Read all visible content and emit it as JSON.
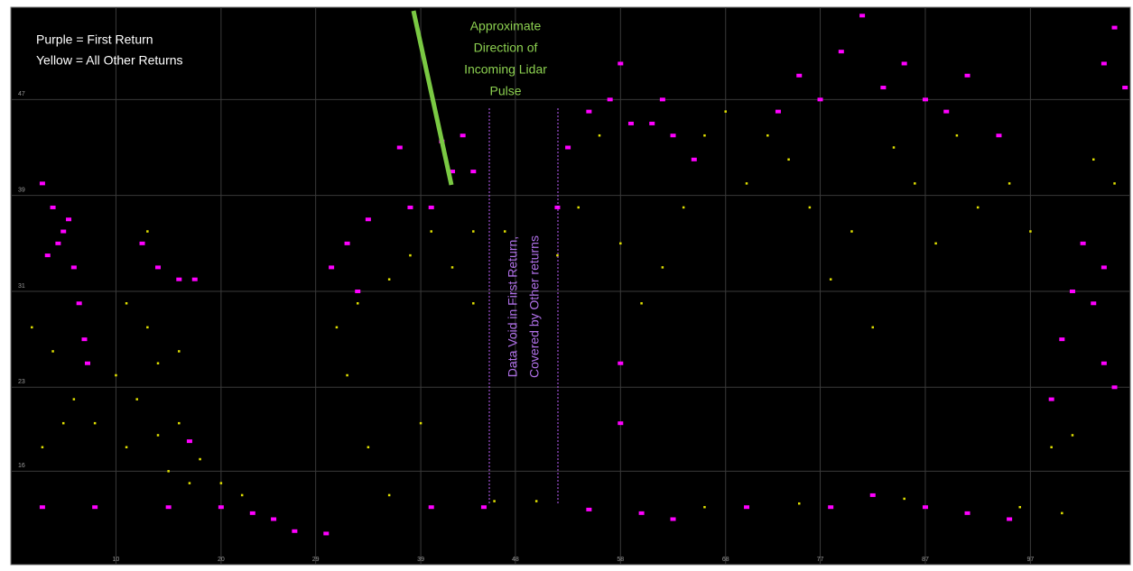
{
  "chart_data": {
    "type": "scatter",
    "notes": [
      [
        "Purple = First Return",
        "Yellow = All Other Returns"
      ],
      [
        "Approximate",
        "Direction of",
        "Incoming Lidar",
        "Pulse"
      ],
      [
        "Data Void in First Return,",
        "Covered by Other returns"
      ]
    ],
    "xlim": [
      0,
      106.5
    ],
    "xticks": [
      10,
      20,
      29,
      39,
      48,
      58,
      68,
      77,
      87,
      97
    ],
    "ylim": [
      8.2,
      54.7
    ],
    "yticks": [
      16,
      23,
      31,
      39,
      47
    ],
    "grid": true,
    "series": [
      {
        "color": "#ff00ff",
        "x": [
          3,
          4,
          5,
          4.5,
          3.5,
          5.5,
          6,
          6.5,
          7,
          7.3,
          12.5,
          14,
          16,
          17.5,
          17,
          3,
          8,
          15,
          20,
          23,
          25,
          27,
          30,
          30.5,
          32,
          34,
          33,
          38,
          40,
          42,
          44,
          43,
          41,
          37,
          52,
          53,
          55,
          57,
          58,
          59,
          58,
          58,
          61,
          63,
          65,
          62,
          73,
          75,
          77,
          79,
          81,
          83,
          85,
          87,
          89,
          91,
          94,
          99,
          100,
          101,
          102,
          103,
          104,
          105,
          104,
          104,
          105,
          106,
          40,
          45,
          55,
          60,
          63,
          70,
          78,
          82,
          87,
          91,
          95
        ],
        "values": [
          40,
          38,
          36,
          35,
          34,
          37,
          33,
          30,
          27,
          25,
          35,
          33,
          32,
          32,
          18.5,
          13,
          13,
          13,
          13,
          12.5,
          12,
          11,
          10.8,
          33,
          35,
          37,
          31,
          38,
          38,
          41,
          41,
          44,
          43.5,
          43,
          38,
          43,
          46,
          47,
          50,
          45,
          25,
          20,
          45,
          44,
          42,
          47,
          46,
          49,
          47,
          51,
          54,
          48,
          50,
          47,
          46,
          49,
          44,
          22,
          27,
          31,
          35,
          30,
          25,
          23,
          33,
          50,
          53,
          48,
          13,
          13,
          12.8,
          12.5,
          12,
          13,
          13,
          14,
          13,
          12.5,
          12
        ]
      },
      {
        "color": "#e0e000",
        "x": [
          2,
          4,
          6,
          8,
          10,
          11,
          12,
          13,
          14,
          15,
          16,
          17,
          18,
          20,
          22,
          11,
          13,
          14,
          16,
          5,
          3,
          31,
          32,
          33,
          34,
          36,
          38,
          40,
          42,
          44,
          39,
          36,
          46,
          50,
          47,
          44,
          52,
          54,
          56,
          58,
          60,
          62,
          64,
          66,
          68,
          70,
          72,
          74,
          76,
          78,
          80,
          82,
          84,
          86,
          88,
          90,
          92,
          95,
          97,
          99,
          101,
          103,
          105,
          96,
          100,
          66,
          75,
          85
        ],
        "values": [
          28,
          26,
          22,
          20,
          24,
          18,
          22,
          28,
          19,
          16,
          20,
          15,
          17,
          15,
          14,
          30,
          36,
          25,
          26,
          20,
          18,
          28,
          24,
          30,
          18,
          32,
          34,
          36,
          33,
          36,
          20,
          14,
          13.5,
          13.5,
          36,
          30,
          34,
          38,
          44,
          35,
          30,
          33,
          38,
          44,
          46,
          40,
          44,
          42,
          38,
          32,
          36,
          28,
          43,
          40,
          35,
          44,
          38,
          40,
          36,
          18,
          19,
          42,
          40,
          13,
          12.5,
          13,
          13.3,
          13.7
        ]
      }
    ]
  }
}
